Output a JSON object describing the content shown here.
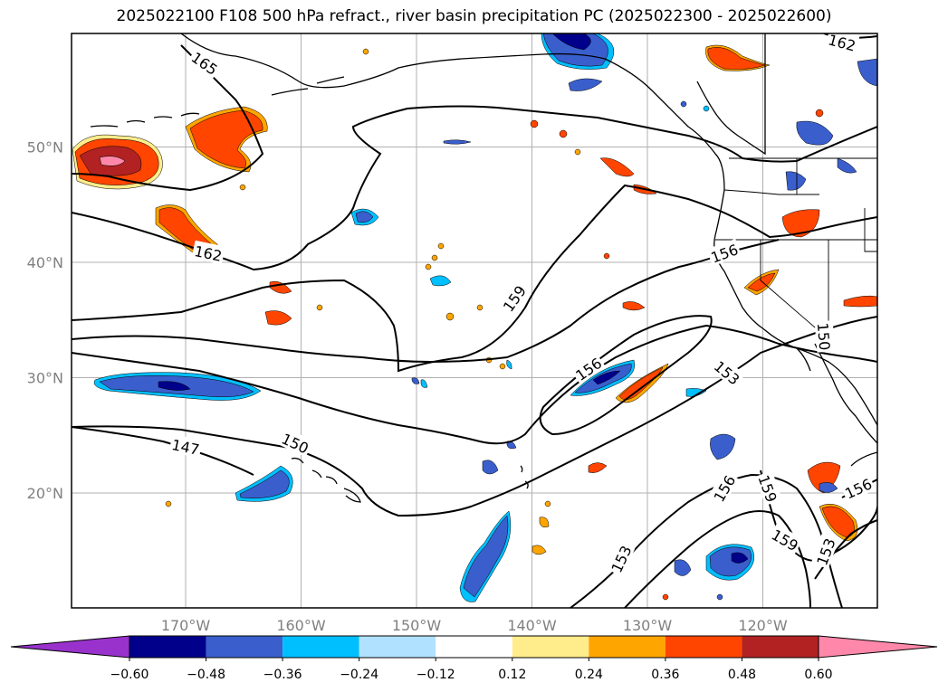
{
  "title": "2025022100 F108 500 hPa refract., river basin precipitation PC (2025022300 - 2025022600)",
  "map": {
    "lon_ticks": [
      {
        "value": -170,
        "label": "170°W"
      },
      {
        "value": -160,
        "label": "160°W"
      },
      {
        "value": -150,
        "label": "150°W"
      },
      {
        "value": -140,
        "label": "140°W"
      },
      {
        "value": -130,
        "label": "130°W"
      },
      {
        "value": -120,
        "label": "120°W"
      }
    ],
    "lat_ticks": [
      {
        "value": 20,
        "label": "20°N"
      },
      {
        "value": 30,
        "label": "30°N"
      },
      {
        "value": 40,
        "label": "40°N"
      },
      {
        "value": 50,
        "label": "50°N"
      }
    ],
    "contour_labels": [
      "165",
      "162",
      "162",
      "159",
      "156",
      "156",
      "153",
      "150",
      "147",
      "150",
      "156",
      "159",
      "159",
      "153",
      "153",
      "156"
    ],
    "colorbar": {
      "ticks": [
        "−0.60",
        "−0.48",
        "−0.36",
        "−0.24",
        "−0.12",
        "0.12",
        "0.24",
        "0.36",
        "0.48",
        "0.60"
      ],
      "colors": [
        "#9932cc",
        "#00008b",
        "#3a5fcd",
        "#00bfff",
        "#b0e2ff",
        "#ffffff",
        "#ffec8b",
        "#ffa500",
        "#ff4500",
        "#b22222",
        "#ff88aa"
      ]
    }
  }
}
